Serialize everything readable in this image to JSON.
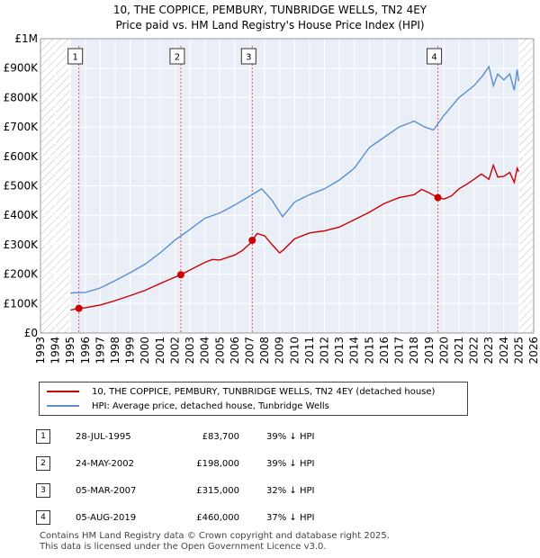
{
  "chart_data": {
    "type": "line",
    "title": "10, THE COPPICE, PEMBURY, TUNBRIDGE WELLS, TN2 4EY",
    "subtitle": "Price paid vs. HM Land Registry's House Price Index (HPI)",
    "xlim": [
      1993,
      2026
    ],
    "ylim": [
      0,
      1000000
    ],
    "x_ticks": [
      1993,
      1994,
      1995,
      1996,
      1997,
      1998,
      1999,
      2000,
      2001,
      2002,
      2003,
      2004,
      2005,
      2006,
      2007,
      2008,
      2009,
      2010,
      2011,
      2012,
      2013,
      2014,
      2015,
      2016,
      2017,
      2018,
      2019,
      2020,
      2021,
      2022,
      2023,
      2024,
      2025,
      2026
    ],
    "y_ticks": [
      {
        "value": 0,
        "label": "£0"
      },
      {
        "value": 100000,
        "label": "£100K"
      },
      {
        "value": 200000,
        "label": "£200K"
      },
      {
        "value": 300000,
        "label": "£300K"
      },
      {
        "value": 400000,
        "label": "£400K"
      },
      {
        "value": 500000,
        "label": "£500K"
      },
      {
        "value": 600000,
        "label": "£600K"
      },
      {
        "value": 700000,
        "label": "£700K"
      },
      {
        "value": 800000,
        "label": "£800K"
      },
      {
        "value": 900000,
        "label": "£900K"
      },
      {
        "value": 1000000,
        "label": "£1M"
      }
    ],
    "data_range": [
      1995.0,
      2025.0
    ],
    "series": [
      {
        "name": "10, THE COPPICE, PEMBURY, TUNBRIDGE WELLS, TN2 4EY (detached house)",
        "color": "#cc0000",
        "x": [
          1995.0,
          1995.57,
          1996.0,
          1997.0,
          1998.0,
          1999.0,
          2000.0,
          2001.0,
          2002.0,
          2002.39,
          2003.0,
          2004.0,
          2004.5,
          2005.0,
          2006.0,
          2006.5,
          2007.0,
          2007.17,
          2007.5,
          2008.0,
          2008.5,
          2009.0,
          2009.25,
          2010.0,
          2011.0,
          2012.0,
          2013.0,
          2014.0,
          2015.0,
          2016.0,
          2017.0,
          2018.0,
          2018.5,
          2019.0,
          2019.59,
          2020.0,
          2020.5,
          2021.0,
          2021.5,
          2022.0,
          2022.5,
          2023.0,
          2023.3,
          2023.6,
          2024.0,
          2024.4,
          2024.7,
          2024.9,
          2025.0
        ],
        "y": [
          78000,
          83700,
          86000,
          95000,
          110000,
          127000,
          145000,
          168000,
          190000,
          198000,
          214000,
          240000,
          250000,
          248000,
          265000,
          280000,
          303000,
          315000,
          338000,
          330000,
          300000,
          272000,
          282000,
          320000,
          340000,
          347000,
          360000,
          385000,
          410000,
          440000,
          460000,
          470000,
          488000,
          476000,
          460000,
          455000,
          466000,
          490000,
          505000,
          522000,
          540000,
          522000,
          570000,
          530000,
          532000,
          546000,
          512000,
          560000,
          548000
        ]
      },
      {
        "name": "HPI: Average price, detached house, Tunbridge Wells",
        "color": "#5b8fd0",
        "x": [
          1995.0,
          1996.0,
          1997.0,
          1998.0,
          1999.0,
          2000.0,
          2001.0,
          2002.0,
          2003.0,
          2004.0,
          2005.0,
          2006.0,
          2007.0,
          2007.8,
          2008.5,
          2009.2,
          2010.0,
          2011.0,
          2012.0,
          2013.0,
          2014.0,
          2015.0,
          2016.0,
          2017.0,
          2018.0,
          2018.7,
          2019.3,
          2020.0,
          2021.0,
          2022.0,
          2022.6,
          2023.0,
          2023.3,
          2023.6,
          2024.0,
          2024.4,
          2024.7,
          2024.9,
          2025.0
        ],
        "y": [
          136000,
          138000,
          153000,
          178000,
          205000,
          234000,
          272000,
          316000,
          352000,
          390000,
          408000,
          435000,
          465000,
          490000,
          450000,
          395000,
          445000,
          470000,
          490000,
          520000,
          560000,
          630000,
          665000,
          700000,
          720000,
          700000,
          690000,
          740000,
          800000,
          840000,
          875000,
          905000,
          840000,
          880000,
          860000,
          880000,
          825000,
          895000,
          855000
        ]
      }
    ],
    "sales": [
      {
        "num": "1",
        "x": 1995.57,
        "y": 83700,
        "date": "28-JUL-1995",
        "price": "£83,700",
        "delta": "39% ↓ HPI"
      },
      {
        "num": "2",
        "x": 2002.39,
        "y": 198000,
        "date": "24-MAY-2002",
        "price": "£198,000",
        "delta": "39% ↓ HPI"
      },
      {
        "num": "3",
        "x": 2007.17,
        "y": 315000,
        "date": "05-MAR-2007",
        "price": "£315,000",
        "delta": "32% ↓ HPI"
      },
      {
        "num": "4",
        "x": 2019.59,
        "y": 460000,
        "date": "05-AUG-2019",
        "price": "£460,000",
        "delta": "37% ↓ HPI"
      }
    ]
  },
  "legend": {
    "property_label": "10, THE COPPICE, PEMBURY, TUNBRIDGE WELLS, TN2 4EY (detached house)",
    "hpi_label": "HPI: Average price, detached house, Tunbridge Wells"
  },
  "footer": {
    "line1": "Contains HM Land Registry data © Crown copyright and database right 2025.",
    "line2": "This data is licensed under the Open Government Licence v3.0."
  }
}
